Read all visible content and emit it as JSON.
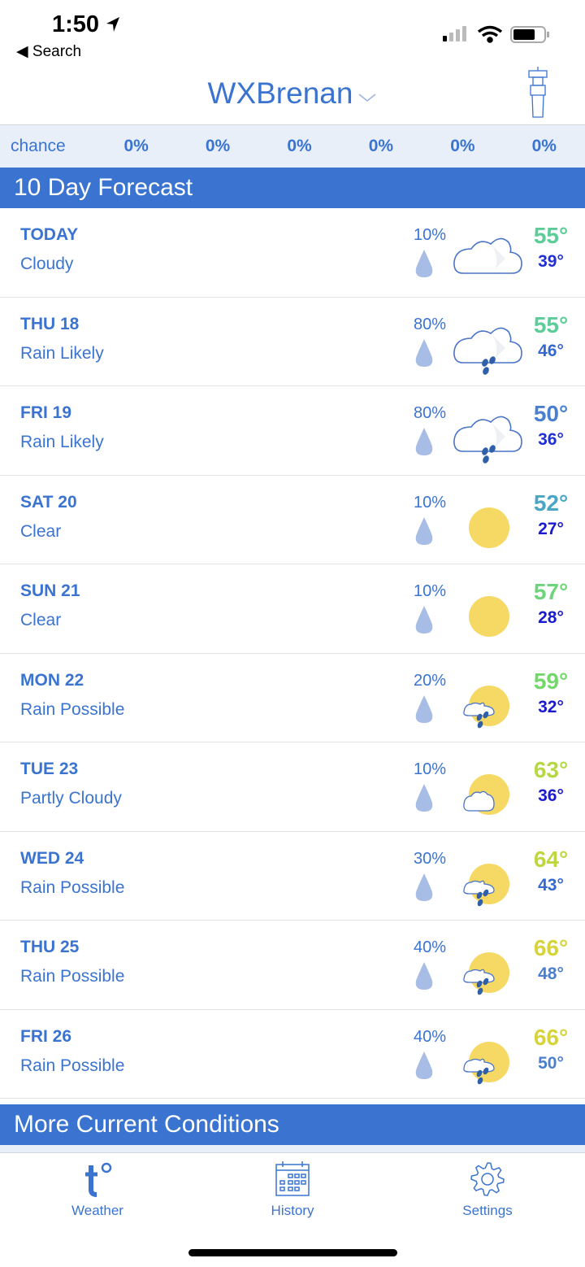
{
  "status": {
    "time": "1:50",
    "back": "Search"
  },
  "header": {
    "title": "WXBrenan"
  },
  "chance": {
    "label": "chance",
    "values": [
      "0%",
      "0%",
      "0%",
      "0%",
      "0%",
      "0%"
    ]
  },
  "forecast_title": "10 Day Forecast",
  "days": [
    {
      "day": "TODAY",
      "cond": "Cloudy",
      "pop": "10%",
      "icon": "cloudy",
      "hi": "55°",
      "lo": "39°",
      "hi_color": "#5ccd98",
      "lo_color": "#2030d6"
    },
    {
      "day": "THU 18",
      "cond": "Rain Likely",
      "pop": "80%",
      "icon": "rain",
      "hi": "55°",
      "lo": "46°",
      "hi_color": "#5ccd98",
      "lo_color": "#3468d0"
    },
    {
      "day": "FRI 19",
      "cond": "Rain Likely",
      "pop": "80%",
      "icon": "rain",
      "hi": "50°",
      "lo": "36°",
      "hi_color": "#4a7fd0",
      "lo_color": "#2030d6"
    },
    {
      "day": "SAT 20",
      "cond": "Clear",
      "pop": "10%",
      "icon": "sun",
      "hi": "52°",
      "lo": "27°",
      "hi_color": "#4aa6c4",
      "lo_color": "#1a1ad0"
    },
    {
      "day": "SUN 21",
      "cond": "Clear",
      "pop": "10%",
      "icon": "sun",
      "hi": "57°",
      "lo": "28°",
      "hi_color": "#6fd37c",
      "lo_color": "#1a1ad0"
    },
    {
      "day": "MON 22",
      "cond": "Rain Possible",
      "pop": "20%",
      "icon": "sun-rain",
      "hi": "59°",
      "lo": "32°",
      "hi_color": "#72d86a",
      "lo_color": "#1a1ad0"
    },
    {
      "day": "TUE 23",
      "cond": "Partly Cloudy",
      "pop": "10%",
      "icon": "partly-cloudy",
      "hi": "63°",
      "lo": "36°",
      "hi_color": "#b6d845",
      "lo_color": "#1a1ad0"
    },
    {
      "day": "WED 24",
      "cond": "Rain Possible",
      "pop": "30%",
      "icon": "sun-rain",
      "hi": "64°",
      "lo": "43°",
      "hi_color": "#bfd63e",
      "lo_color": "#3468d0"
    },
    {
      "day": "THU 25",
      "cond": "Rain Possible",
      "pop": "40%",
      "icon": "sun-rain",
      "hi": "66°",
      "lo": "48°",
      "hi_color": "#d6d43a",
      "lo_color": "#4a7fd0"
    },
    {
      "day": "FRI 26",
      "cond": "Rain Possible",
      "pop": "40%",
      "icon": "sun-rain",
      "hi": "66°",
      "lo": "50°",
      "hi_color": "#d6d43a",
      "lo_color": "#4a7fd0"
    }
  ],
  "more_title": "More Current Conditions",
  "tabs": [
    {
      "label": "Weather",
      "icon": "temperature-icon"
    },
    {
      "label": "History",
      "icon": "calendar-icon"
    },
    {
      "label": "Settings",
      "icon": "gear-icon"
    }
  ],
  "colors": {
    "accent": "#3b74d0",
    "sun": "#f6d865",
    "drop": "#a7bde6"
  }
}
